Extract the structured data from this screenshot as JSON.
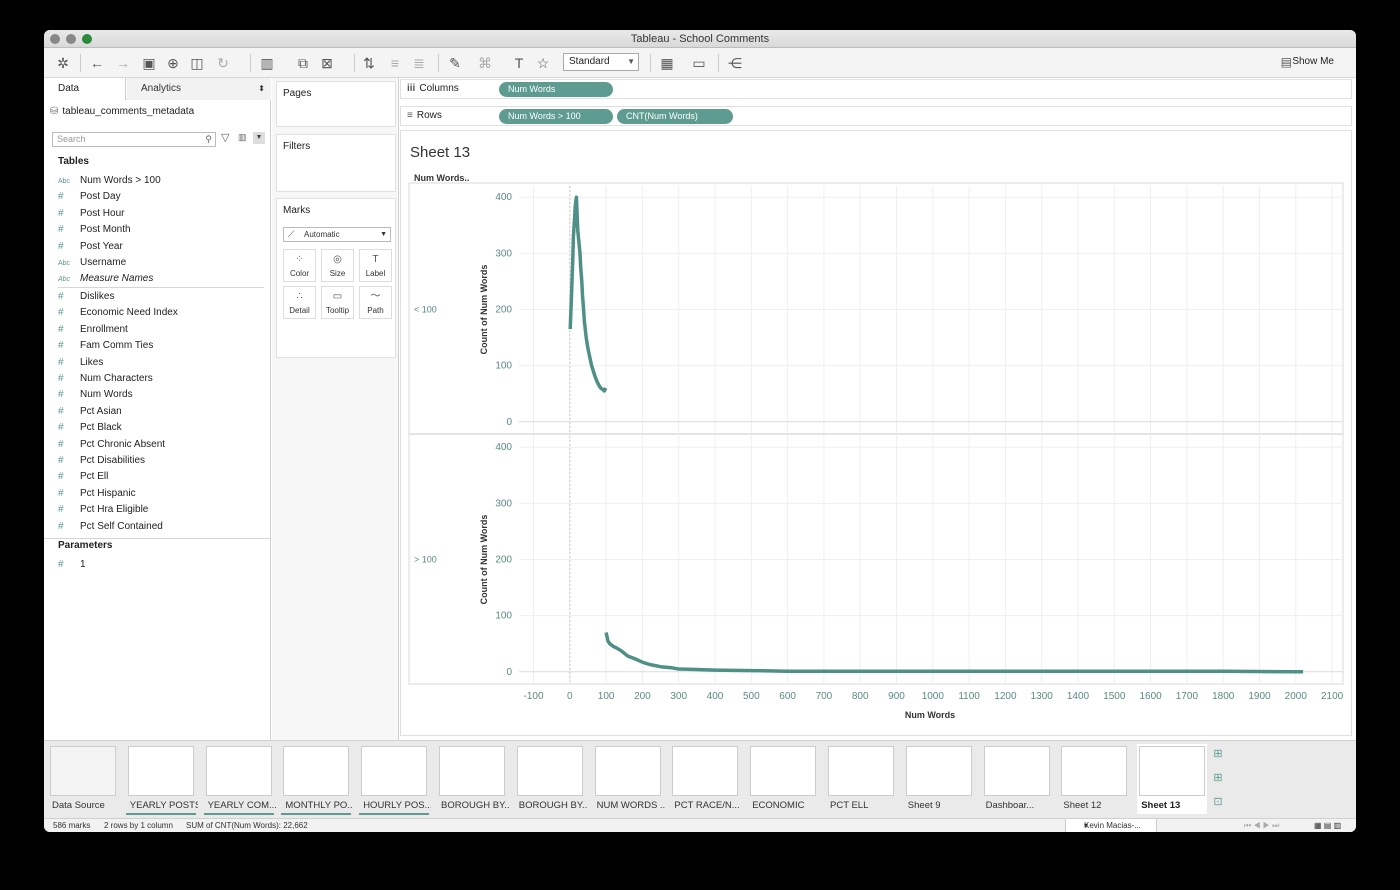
{
  "window": {
    "title": "Tableau - School Comments"
  },
  "toolbar": {
    "standard_label": "Standard",
    "show_me_label": "Show Me"
  },
  "data_pane": {
    "tab_data": "Data",
    "tab_analytics": "Analytics",
    "datasource": "tableau_comments_metadata",
    "search_placeholder": "Search",
    "tables_header": "Tables",
    "dimensions": [
      {
        "type": "Abc",
        "name": "Num Words > 100"
      },
      {
        "type": "#",
        "name": "Post Day"
      },
      {
        "type": "#",
        "name": "Post Hour"
      },
      {
        "type": "#",
        "name": "Post Month"
      },
      {
        "type": "#",
        "name": "Post Year"
      },
      {
        "type": "Abc",
        "name": "Username"
      },
      {
        "type": "Abc",
        "name": "Measure Names"
      }
    ],
    "measures": [
      {
        "type": "#",
        "name": "Dislikes"
      },
      {
        "type": "#",
        "name": "Economic Need Index"
      },
      {
        "type": "#",
        "name": "Enrollment"
      },
      {
        "type": "#",
        "name": "Fam Comm Ties"
      },
      {
        "type": "#",
        "name": "Likes"
      },
      {
        "type": "#",
        "name": "Num Characters"
      },
      {
        "type": "#",
        "name": "Num Words"
      },
      {
        "type": "#",
        "name": "Pct Asian"
      },
      {
        "type": "#",
        "name": "Pct Black"
      },
      {
        "type": "#",
        "name": "Pct Chronic Absent"
      },
      {
        "type": "#",
        "name": "Pct Disabilities"
      },
      {
        "type": "#",
        "name": "Pct Ell"
      },
      {
        "type": "#",
        "name": "Pct Hispanic"
      },
      {
        "type": "#",
        "name": "Pct Hra Eligible"
      },
      {
        "type": "#",
        "name": "Pct Self Contained"
      }
    ],
    "parameters_header": "Parameters",
    "parameters": [
      {
        "type": "#",
        "name": "1"
      }
    ]
  },
  "cards": {
    "pages": "Pages",
    "filters": "Filters",
    "marks": "Marks",
    "mark_type": "Automatic",
    "buttons": [
      "Color",
      "Size",
      "Label",
      "Detail",
      "Tooltip",
      "Path"
    ]
  },
  "shelves": {
    "columns_label": "Columns",
    "rows_label": "Rows",
    "columns_pill": "Num Words",
    "rows_pills": [
      "Num Words > 100",
      "CNT(Num Words)"
    ]
  },
  "sheet": {
    "title": "Sheet 13",
    "row_header": "Num Words..",
    "pane_labels": [
      "< 100",
      "> 100"
    ],
    "y_axis_title": "Count of Num Words",
    "x_axis_title": "Num Words"
  },
  "chart_data": {
    "type": "line",
    "x_ticks": [
      -100,
      0,
      100,
      200,
      300,
      400,
      500,
      600,
      700,
      800,
      900,
      1000,
      1100,
      1200,
      1300,
      1400,
      1500,
      1600,
      1700,
      1800,
      1900,
      2000,
      2100
    ],
    "xlim": [
      -140,
      2130
    ],
    "y_ticks": [
      0,
      100,
      200,
      300,
      400
    ],
    "ylim": [
      -20,
      420
    ],
    "grid": true,
    "color": "#4e8f86",
    "panes": [
      {
        "name": "< 100",
        "x": [
          1,
          5,
          8,
          10,
          13,
          15,
          18,
          20,
          22,
          25,
          28,
          30,
          33,
          35,
          38,
          40,
          45,
          50,
          55,
          60,
          65,
          70,
          75,
          80,
          85,
          90,
          95,
          99
        ],
        "y": [
          165,
          230,
          285,
          330,
          360,
          385,
          400,
          370,
          340,
          320,
          300,
          275,
          250,
          225,
          200,
          180,
          150,
          130,
          115,
          100,
          90,
          80,
          72,
          65,
          60,
          58,
          55,
          60
        ]
      },
      {
        "name": "> 100",
        "x": [
          100,
          105,
          110,
          120,
          130,
          140,
          150,
          160,
          180,
          200,
          220,
          250,
          280,
          300,
          350,
          400,
          500,
          600,
          800,
          1000,
          1200,
          1400,
          1600,
          1800,
          2000,
          2020
        ],
        "y": [
          70,
          55,
          50,
          45,
          42,
          38,
          33,
          28,
          23,
          17,
          13,
          9,
          7,
          5,
          4,
          3,
          2,
          1,
          1,
          1,
          1,
          1,
          1,
          1,
          0,
          0
        ]
      }
    ]
  },
  "sheet_tabs": [
    "Data Source",
    "YEARLY POSTS",
    "YEARLY COM...",
    "MONTHLY PO...",
    "HOURLY POS...",
    "BOROUGH BY...",
    "BOROUGH BY...",
    "NUM WORDS ...",
    "PCT RACE/N...",
    "ECONOMIC",
    "PCT ELL",
    "Sheet 9",
    "Dashboar...",
    "Sheet 12",
    "Sheet 13"
  ],
  "status": {
    "marks": "586 marks",
    "rows_cols": "2 rows by 1 column",
    "sum": "SUM of CNT(Num Words): 22,662",
    "user": "Kevin Macias-..."
  }
}
